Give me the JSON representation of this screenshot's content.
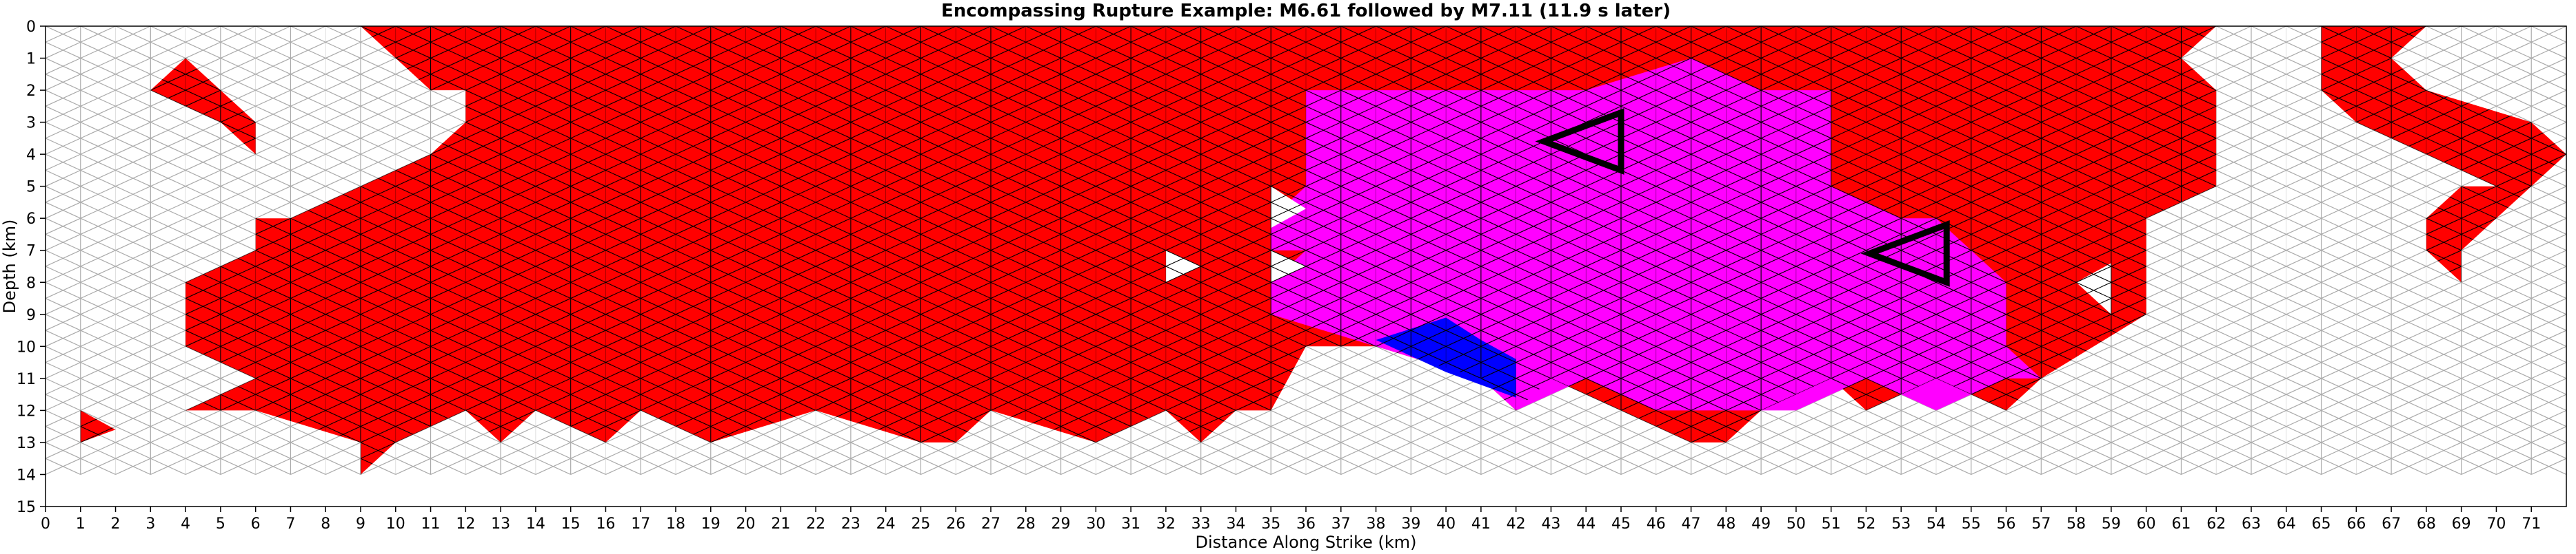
{
  "chart_data": {
    "type": "heatmap",
    "title": "Encompassing Rupture Example: M6.61 followed by M7.11 (11.9 s later)",
    "xlabel": "Distance Along Strike (km)",
    "ylabel": "Depth (km)",
    "xlim": [
      0,
      72
    ],
    "ylim": [
      0,
      15
    ],
    "y_inverted": true,
    "x_ticks": [
      0,
      1,
      2,
      3,
      4,
      5,
      6,
      7,
      8,
      9,
      10,
      11,
      12,
      13,
      14,
      15,
      16,
      17,
      18,
      19,
      20,
      21,
      22,
      23,
      24,
      25,
      26,
      27,
      28,
      29,
      30,
      31,
      32,
      33,
      34,
      35,
      36,
      37,
      38,
      39,
      40,
      41,
      42,
      43,
      44,
      45,
      46,
      47,
      48,
      49,
      50,
      51,
      52,
      53,
      54,
      55,
      56,
      57,
      58,
      59,
      60,
      61,
      62,
      63,
      64,
      65,
      66,
      67,
      68,
      69,
      70,
      71
    ],
    "y_ticks": [
      0,
      1,
      2,
      3,
      4,
      5,
      6,
      7,
      8,
      9,
      10,
      11,
      12,
      13,
      14,
      15
    ],
    "mesh": "triangular, 2 km spacing along strike, 1 km rows in depth",
    "legend": "none",
    "colors": {
      "first_event_M6.61": "#ff0000",
      "second_event_M7.11": "#ff00ff",
      "overlap_patch": "#0000ff",
      "unruptured": "#ffffff",
      "mesh_edges_ruptured": "#000000",
      "mesh_edges_unruptured": "#aaaaaa"
    },
    "red_region": [
      [
        9,
        0
      ],
      [
        62,
        0
      ],
      [
        61,
        1
      ],
      [
        62,
        2
      ],
      [
        62,
        5
      ],
      [
        60,
        6
      ],
      [
        60,
        9
      ],
      [
        57,
        11
      ],
      [
        56,
        12
      ],
      [
        54,
        11
      ],
      [
        52,
        12
      ],
      [
        51,
        11
      ],
      [
        49,
        12
      ],
      [
        48,
        13
      ],
      [
        47,
        13
      ],
      [
        45,
        12
      ],
      [
        43,
        11
      ],
      [
        42,
        12
      ],
      [
        41,
        11
      ],
      [
        38,
        10
      ],
      [
        36,
        10
      ],
      [
        35,
        12
      ],
      [
        34,
        12
      ],
      [
        33,
        13
      ],
      [
        32,
        12
      ],
      [
        30,
        13
      ],
      [
        27,
        12
      ],
      [
        26,
        13
      ],
      [
        25,
        13
      ],
      [
        22,
        12
      ],
      [
        19,
        13
      ],
      [
        17,
        12
      ],
      [
        16,
        13
      ],
      [
        14,
        12
      ],
      [
        13,
        13
      ],
      [
        12,
        12
      ],
      [
        10,
        13
      ],
      [
        9,
        14
      ],
      [
        9,
        13
      ],
      [
        6,
        12
      ],
      [
        4,
        12
      ],
      [
        6,
        11
      ],
      [
        4,
        10
      ],
      [
        4,
        8
      ],
      [
        6,
        7
      ],
      [
        6,
        6
      ],
      [
        7,
        6
      ],
      [
        9,
        5
      ],
      [
        11,
        4
      ],
      [
        12,
        3
      ],
      [
        12,
        2
      ],
      [
        11,
        2
      ],
      [
        10,
        1
      ],
      [
        9,
        0
      ]
    ],
    "red_patches_extra": [
      [
        [
          3,
          2
        ],
        [
          4,
          1
        ],
        [
          5,
          2
        ],
        [
          6,
          3
        ],
        [
          6,
          4
        ],
        [
          5,
          3
        ]
      ],
      [
        [
          1,
          12
        ],
        [
          2,
          12.6
        ],
        [
          1,
          13
        ]
      ],
      [
        [
          65,
          0
        ],
        [
          68,
          0
        ],
        [
          67,
          1
        ],
        [
          68,
          2
        ],
        [
          71,
          3
        ],
        [
          72,
          4
        ],
        [
          71,
          5
        ],
        [
          70,
          6
        ],
        [
          69,
          7
        ],
        [
          69,
          8
        ],
        [
          68,
          7
        ],
        [
          68,
          6
        ],
        [
          69,
          5
        ],
        [
          70,
          5
        ],
        [
          68,
          4
        ],
        [
          66,
          3
        ],
        [
          65,
          2
        ],
        [
          65,
          0
        ]
      ]
    ],
    "magenta_region": [
      [
        36,
        2
      ],
      [
        38,
        2
      ],
      [
        41,
        2
      ],
      [
        44,
        2
      ],
      [
        47,
        1
      ],
      [
        49,
        2
      ],
      [
        51,
        2
      ],
      [
        51,
        5
      ],
      [
        53,
        6
      ],
      [
        54,
        6
      ],
      [
        55,
        7
      ],
      [
        56,
        8
      ],
      [
        56,
        9
      ],
      [
        56,
        10
      ],
      [
        57,
        11
      ],
      [
        56,
        11
      ],
      [
        54,
        12
      ],
      [
        52,
        11
      ],
      [
        50,
        12
      ],
      [
        48,
        12
      ],
      [
        46,
        12
      ],
      [
        44,
        11
      ],
      [
        42,
        12
      ],
      [
        41,
        11
      ],
      [
        38,
        10
      ],
      [
        35,
        9
      ],
      [
        35,
        8
      ],
      [
        36,
        7
      ],
      [
        35,
        7
      ],
      [
        35,
        6
      ],
      [
        36,
        5
      ]
    ],
    "blue_patch": [
      [
        38,
        9.8
      ],
      [
        40,
        9.1
      ],
      [
        41,
        9.8
      ],
      [
        42,
        10.4
      ],
      [
        42,
        11.6
      ],
      [
        41,
        11.2
      ],
      [
        40,
        10.8
      ]
    ],
    "white_holes": [
      [
        [
          32,
          7
        ],
        [
          33,
          7.5
        ],
        [
          32,
          8
        ]
      ],
      [
        [
          35,
          5
        ],
        [
          36,
          5.7
        ],
        [
          35,
          6.3
        ]
      ],
      [
        [
          35,
          7
        ],
        [
          36,
          7.5
        ],
        [
          35,
          8
        ]
      ],
      [
        [
          58,
          8
        ],
        [
          59,
          7.4
        ],
        [
          59,
          9
        ]
      ]
    ],
    "hypocenters": [
      {
        "event": "M6.61",
        "x_km": 44.2,
        "depth_km": 3.6,
        "marker": "triangle outline"
      },
      {
        "event": "M7.11",
        "x_km": 53.5,
        "depth_km": 7.1,
        "marker": "triangle outline"
      }
    ]
  }
}
